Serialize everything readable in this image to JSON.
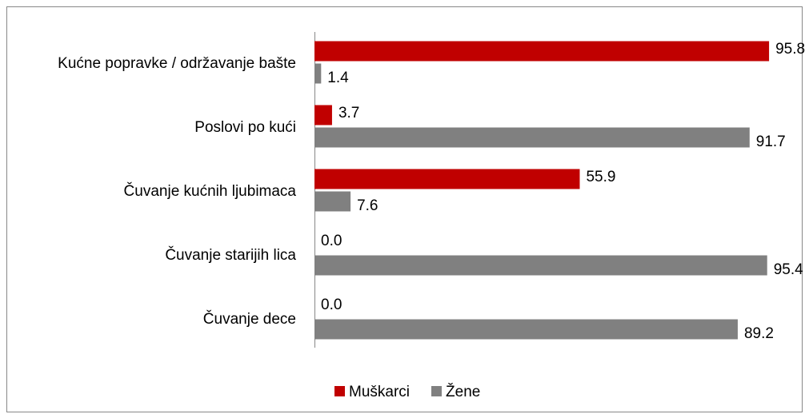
{
  "chart_data": {
    "type": "bar",
    "orientation": "horizontal",
    "categories": [
      "Kućne popravke / održavanje bašte",
      "Poslovi po kući",
      "Čuvanje kućnih ljubimaca",
      "Čuvanje starijih lica",
      "Čuvanje dece"
    ],
    "series": [
      {
        "name": "Muškarci",
        "color": "#c00000",
        "values": [
          95.8,
          3.7,
          55.9,
          0,
          0
        ],
        "value_labels": [
          "95.8",
          "3.7",
          "55.9",
          "0.0",
          "0.0"
        ]
      },
      {
        "name": "Žene",
        "color": "#808080",
        "values": [
          1.4,
          91.7,
          7.6,
          95.4,
          89.2
        ],
        "value_labels": [
          "1.4",
          "91.7",
          "7.6",
          "95.4",
          "89.2"
        ]
      }
    ],
    "xlim": [
      0,
      100
    ]
  }
}
